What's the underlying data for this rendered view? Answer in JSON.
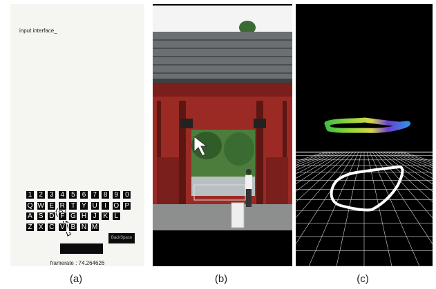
{
  "panel_a": {
    "input_text": "input interface_",
    "keyboard": {
      "rows": [
        [
          "1",
          "2",
          "3",
          "4",
          "5",
          "6",
          "7",
          "8",
          "9",
          "0"
        ],
        [
          "Q",
          "W",
          "E",
          "R",
          "T",
          "Y",
          "U",
          "I",
          "O",
          "P"
        ],
        [
          "A",
          "S",
          "D",
          "F",
          "G",
          "H",
          "J",
          "K",
          "L"
        ],
        [
          "Z",
          "X",
          "C",
          "V",
          "B",
          "N",
          "M"
        ]
      ],
      "backspace_label": "BackSpace"
    },
    "framerate_text": "framerate : 74.264626"
  },
  "captions": {
    "a": "(a)",
    "b": "(b)",
    "c": "(c)"
  },
  "icons": [
    "hand-pointer-icon",
    "arrow-cursor-icon"
  ],
  "colors": {
    "gate_red": "#9c2a24",
    "trajectory_white": "#ffffff"
  }
}
